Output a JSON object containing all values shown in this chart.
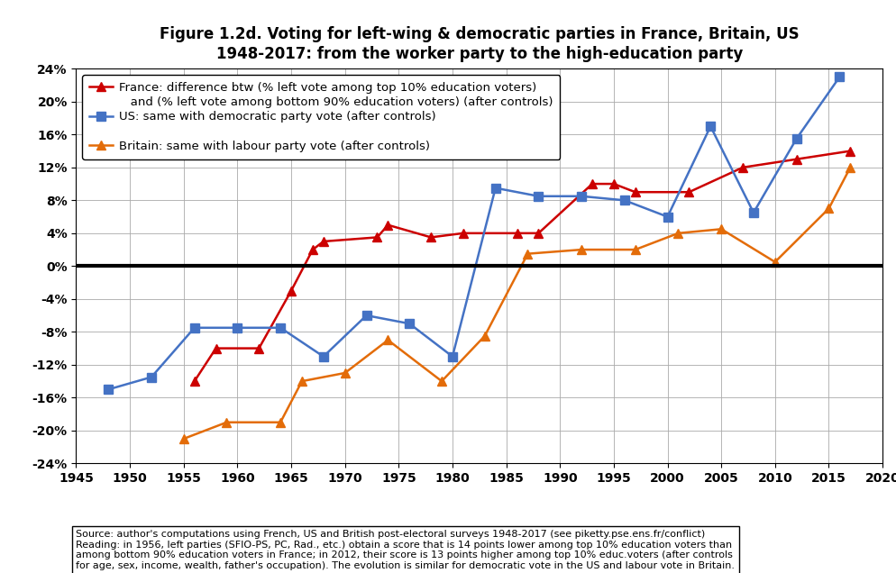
{
  "title_line1": "Figure 1.2d. Voting for left-wing & democratic parties in France, Britain, US",
  "title_line2": "1948-2017: from the worker party to the high-education party",
  "france_x": [
    1956,
    1958,
    1962,
    1965,
    1967,
    1968,
    1973,
    1974,
    1978,
    1981,
    1986,
    1988,
    1993,
    1995,
    1997,
    2002,
    2007,
    2012,
    2017
  ],
  "france_y": [
    -14,
    -10,
    -10,
    -3,
    2,
    3,
    3.5,
    5,
    3.5,
    4,
    4,
    4,
    10,
    10,
    9,
    9,
    12,
    13,
    14
  ],
  "us_x": [
    1948,
    1952,
    1956,
    1960,
    1964,
    1968,
    1972,
    1976,
    1980,
    1984,
    1988,
    1992,
    1996,
    2000,
    2004,
    2008,
    2012,
    2016
  ],
  "us_y": [
    -15,
    -13.5,
    -7.5,
    -7.5,
    -7.5,
    -11,
    -6,
    -7,
    -11,
    9.5,
    8.5,
    8.5,
    8,
    6,
    17,
    6.5,
    15.5,
    23
  ],
  "britain_x": [
    1955,
    1959,
    1964,
    1966,
    1970,
    1974,
    1979,
    1983,
    1987,
    1992,
    1997,
    2001,
    2005,
    2010,
    2015,
    2017
  ],
  "britain_y": [
    -21,
    -19,
    -19,
    -14,
    -13,
    -9,
    -14,
    -8.5,
    1.5,
    2,
    2,
    4,
    4.5,
    0.5,
    7,
    12
  ],
  "france_color": "#cc0000",
  "us_color": "#4472c4",
  "britain_color": "#e36c09",
  "france_label_l1": "France: difference btw (% left vote among top 10% education voters)",
  "france_label_l2": "   and (% left vote among bottom 90% education voters) (after controls)",
  "us_label": "US: same with democratic party vote (after controls)",
  "britain_label": "Britain: same with labour party vote (after controls)",
  "xlim": [
    1945,
    2020
  ],
  "ylim": [
    -24,
    24
  ],
  "ytick_vals": [
    -24,
    -20,
    -16,
    -12,
    -8,
    -4,
    0,
    4,
    8,
    12,
    16,
    20,
    24
  ],
  "xticks": [
    1945,
    1950,
    1955,
    1960,
    1965,
    1970,
    1975,
    1980,
    1985,
    1990,
    1995,
    2000,
    2005,
    2010,
    2015,
    2020
  ],
  "source_bold1": "Source",
  "source_rest1": ": author's computations using French, US and British post-electoral surveys 1948-2017 (see piketty.pse.ens.fr/conflict)",
  "source_bold2": "Reading",
  "source_rest2": ": in 1956, left parties (SFIO-PS, PC, Rad., etc.) obtain a score that is 14 points lower among top 10% education voters than",
  "source_line3": "among bottom 90% education voters in France; in 2012, their score is 13 points higher among top 10% educ.voters (after controls",
  "source_line4": "for age, sex, income, wealth, father's occupation). The evolution is similar for democratic vote in the US and labour vote in Britain."
}
